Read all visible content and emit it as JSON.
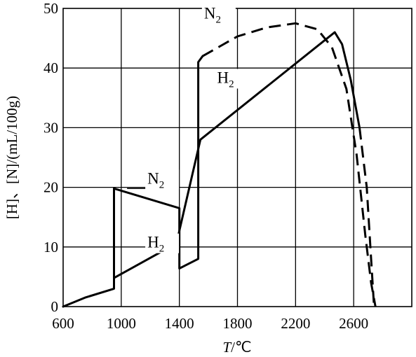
{
  "chart_data": {
    "type": "line",
    "xlabel_italic": "T",
    "xlabel_unit": "/℃",
    "ylabel": "[H]、[N]/(mL/100g)",
    "xlim": [
      600,
      3000
    ],
    "ylim": [
      0,
      50
    ],
    "x_ticks": [
      600,
      1000,
      1400,
      1800,
      2200,
      2600
    ],
    "y_ticks": [
      0,
      10,
      20,
      30,
      40,
      50
    ],
    "grid": true,
    "series": [
      {
        "name": "N2",
        "style": "solid-then-dashed",
        "solid_points": [
          [
            600,
            0
          ],
          [
            750,
            1.5
          ],
          [
            950,
            3
          ],
          [
            950,
            19.8
          ],
          [
            1400,
            16.5
          ],
          [
            1400,
            6.4
          ],
          [
            1530,
            8
          ],
          [
            1530,
            41
          ],
          [
            1560,
            42
          ]
        ],
        "dashed_points": [
          [
            1560,
            42
          ],
          [
            1800,
            45.3
          ],
          [
            2000,
            46.8
          ],
          [
            2200,
            47.5
          ],
          [
            2350,
            46.5
          ],
          [
            2450,
            43.5
          ],
          [
            2550,
            36.5
          ],
          [
            2620,
            25.5
          ],
          [
            2680,
            12
          ],
          [
            2720,
            4
          ],
          [
            2750,
            0
          ]
        ]
      },
      {
        "name": "H2",
        "style": "solid-then-dashed",
        "solid_points": [
          [
            950,
            4.8
          ],
          [
            1380,
            10.6
          ],
          [
            1545,
            28
          ],
          [
            2470,
            46
          ],
          [
            2520,
            44
          ],
          [
            2580,
            38
          ],
          [
            2640,
            30
          ]
        ],
        "dashed_points": [
          [
            2640,
            30
          ],
          [
            2690,
            20
          ],
          [
            2720,
            8
          ],
          [
            2740,
            0
          ]
        ]
      }
    ],
    "annotations": [
      {
        "base": "N",
        "sub": "2",
        "at": [
          1180,
          20.6
        ]
      },
      {
        "base": "H",
        "sub": "2",
        "at": [
          1180,
          9.9
        ]
      },
      {
        "base": "N",
        "sub": "2",
        "at": [
          1570,
          48.3
        ]
      },
      {
        "base": "H",
        "sub": "2",
        "at": [
          1660,
          37.5
        ]
      }
    ]
  }
}
